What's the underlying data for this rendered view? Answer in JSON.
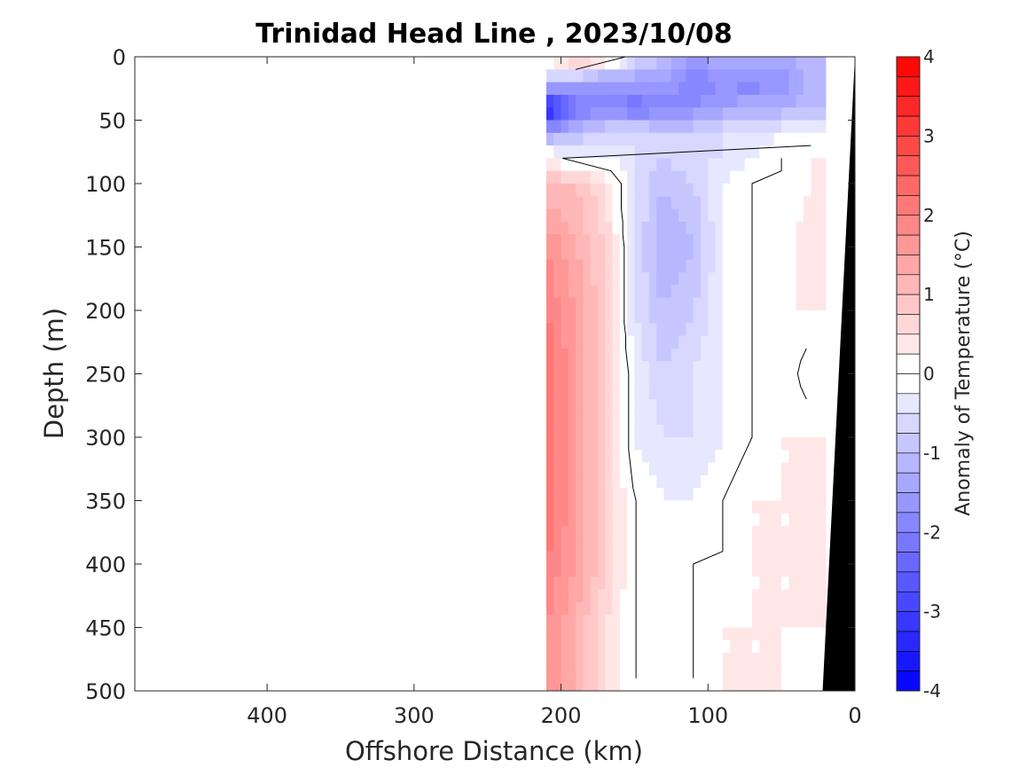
{
  "chart_data": {
    "type": "heatmap",
    "title": "Trinidad Head Line , 2023/10/08",
    "xlabel": "Offshore Distance (km)",
    "ylabel": "Depth (m)",
    "xlim": [
      490,
      0
    ],
    "ylim": [
      0,
      500
    ],
    "x_reversed": true,
    "y_reversed": true,
    "x_ticks": [
      400,
      300,
      200,
      100,
      0
    ],
    "y_ticks": [
      0,
      50,
      100,
      150,
      200,
      250,
      300,
      350,
      400,
      450,
      500
    ],
    "colorbar": {
      "label": "Anomaly of Temperature (°C)",
      "range": [
        -4,
        4
      ],
      "step": 0.25,
      "ticks": [
        4,
        3,
        2,
        1,
        0,
        -1,
        -2,
        -3,
        -4
      ]
    },
    "data_extent_km": [
      210,
      20
    ],
    "x": [
      210,
      190,
      170,
      150,
      130,
      110,
      90,
      70,
      50,
      30
    ],
    "depths": [
      0,
      20,
      40,
      60,
      80,
      100,
      150,
      200,
      250,
      300,
      350,
      400,
      450,
      500
    ],
    "values": [
      [
        0.5,
        1.25,
        1.0,
        -0.5,
        -1.0,
        -1.5,
        -1.25,
        -1.0,
        -1.25,
        -1.0
      ],
      [
        -1.0,
        -1.25,
        -1.75,
        -1.5,
        -1.5,
        -2.0,
        -1.75,
        -2.0,
        -1.75,
        -1.25
      ],
      [
        -3.75,
        -2.25,
        -1.75,
        -2.25,
        -2.0,
        -1.75,
        -1.5,
        -1.25,
        -1.25,
        -1.0
      ],
      [
        -1.5,
        -1.0,
        -0.75,
        -0.5,
        -0.75,
        -0.75,
        -0.5,
        -0.5,
        -0.25,
        -0.25
      ],
      [
        0.25,
        -0.25,
        -0.25,
        -0.5,
        -0.75,
        -0.5,
        -0.5,
        -0.25,
        0.0,
        0.25
      ],
      [
        1.0,
        1.0,
        0.5,
        -0.5,
        -1.0,
        -0.75,
        -0.25,
        0.0,
        0.0,
        0.25
      ],
      [
        1.75,
        1.25,
        0.75,
        -0.5,
        -1.25,
        -1.0,
        -0.25,
        0.0,
        0.0,
        0.5
      ],
      [
        2.0,
        1.5,
        0.75,
        -0.5,
        -1.0,
        -0.75,
        -0.25,
        0.0,
        0.25,
        0.25
      ],
      [
        2.25,
        1.5,
        0.75,
        -0.25,
        -0.75,
        -0.5,
        -0.25,
        0.0,
        0.25,
        -0.25
      ],
      [
        2.25,
        1.5,
        0.75,
        -0.25,
        -0.5,
        -0.5,
        -0.25,
        0.0,
        0.25,
        0.25
      ],
      [
        2.25,
        1.5,
        0.75,
        0.0,
        -0.25,
        -0.25,
        0.0,
        0.25,
        0.25,
        0.25
      ],
      [
        2.0,
        1.5,
        0.75,
        0.0,
        -0.25,
        0.0,
        0.0,
        0.25,
        0.25,
        0.25
      ],
      [
        1.75,
        1.25,
        0.5,
        0.0,
        -0.25,
        0.0,
        0.25,
        0.25,
        0.25,
        0.25
      ],
      [
        1.75,
        1.25,
        0.5,
        0.0,
        0.0,
        0.0,
        0.25,
        0.25,
        0.25,
        0.0
      ]
    ],
    "bathymetry": {
      "color": "#000000",
      "points": [
        [
          0,
          0
        ],
        [
          22,
          500
        ]
      ]
    },
    "zero_contour_color": "#000000",
    "colors": {
      "positive": "#ff0000",
      "negative": "#0000ff",
      "neutral": "#ffffff",
      "axis": "#262626"
    }
  }
}
